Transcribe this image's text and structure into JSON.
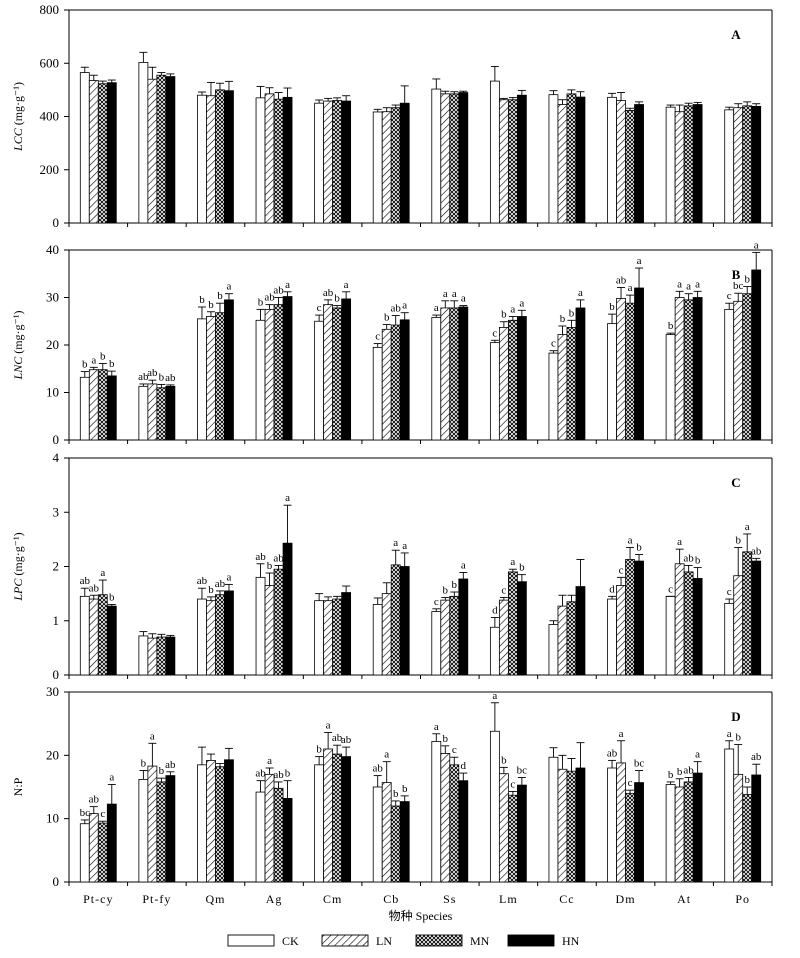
{
  "chart_data": [
    {
      "type": "bar",
      "panel_label": "A",
      "ylabel": "LCC",
      "yunit": "(mg·g⁻¹)",
      "ylim": [
        0,
        800
      ],
      "yticks": [
        "0",
        "200",
        "400",
        "600",
        "800"
      ],
      "categories": [
        "Pt-cy",
        "Pt-fy",
        "Qm",
        "Ag",
        "Cm",
        "Cb",
        "Ss",
        "Lm",
        "Cc",
        "Dm",
        "At",
        "Po"
      ],
      "series": [
        {
          "name": "CK",
          "values": [
            565,
            603,
            480,
            470,
            450,
            417,
            503,
            533,
            482,
            472,
            435,
            425
          ],
          "err": [
            20,
            38,
            12,
            43,
            12,
            10,
            38,
            55,
            15,
            15,
            8,
            10
          ],
          "labels": [
            "",
            "",
            "",
            "",
            "",
            "",
            "",
            "",
            "",
            "",
            "",
            ""
          ]
        },
        {
          "name": "LN",
          "values": [
            535,
            540,
            478,
            485,
            458,
            418,
            485,
            463,
            445,
            460,
            418,
            433
          ],
          "err": [
            20,
            45,
            50,
            23,
            10,
            15,
            10,
            5,
            18,
            30,
            25,
            15
          ],
          "labels": [
            "",
            "",
            "",
            "",
            "",
            "",
            "",
            "",
            "",
            "",
            "",
            ""
          ]
        },
        {
          "name": "MN",
          "values": [
            523,
            555,
            500,
            465,
            460,
            433,
            485,
            463,
            485,
            423,
            440,
            440
          ],
          "err": [
            10,
            10,
            25,
            25,
            10,
            10,
            8,
            8,
            15,
            8,
            10,
            15
          ],
          "labels": [
            "",
            "",
            "",
            "",
            "",
            "",
            "",
            "",
            "",
            "",
            "",
            ""
          ]
        },
        {
          "name": "HN",
          "values": [
            527,
            550,
            497,
            472,
            458,
            450,
            490,
            480,
            473,
            445,
            445,
            438
          ],
          "err": [
            10,
            10,
            35,
            35,
            20,
            65,
            5,
            18,
            20,
            10,
            8,
            10
          ],
          "labels": [
            "",
            "",
            "",
            "",
            "",
            "",
            "",
            "",
            "",
            "",
            "",
            ""
          ]
        }
      ]
    },
    {
      "type": "bar",
      "panel_label": "B",
      "ylabel": "LNC",
      "yunit": "(mg·g⁻¹)",
      "ylim": [
        0,
        40
      ],
      "yticks": [
        "0",
        "10",
        "20",
        "30",
        "40"
      ],
      "categories": [
        "Pt-cy",
        "Pt-fy",
        "Qm",
        "Ag",
        "Cm",
        "Cb",
        "Ss",
        "Lm",
        "Cc",
        "Dm",
        "At",
        "Po"
      ],
      "series": [
        {
          "name": "CK",
          "values": [
            13.2,
            11.3,
            25.5,
            25.2,
            25.0,
            19.5,
            25.8,
            20.5,
            18.3,
            24.5,
            22.2,
            27.5
          ],
          "err": [
            1.2,
            0.5,
            2.5,
            2.3,
            1.3,
            0.8,
            0.5,
            0.5,
            0.5,
            2.0,
            0.3,
            1.3
          ],
          "labels": [
            "b",
            "ab",
            "b",
            "b",
            "c",
            "c",
            "a",
            "c",
            "c",
            "b",
            "b",
            "c"
          ]
        },
        {
          "name": "LN",
          "values": [
            14.8,
            11.8,
            26.0,
            27.5,
            28.5,
            23.3,
            27.8,
            23.7,
            22.2,
            29.8,
            30.0,
            29.2
          ],
          "err": [
            0.5,
            0.8,
            1.0,
            1.0,
            1.0,
            1.0,
            1.5,
            1.2,
            1.8,
            2.3,
            1.3,
            1.7
          ],
          "labels": [
            "a",
            "ab",
            "b",
            "ab",
            "ab",
            "b",
            "a",
            "b",
            "b",
            "ab",
            "a",
            "bc"
          ]
        },
        {
          "name": "MN",
          "values": [
            14.8,
            11.0,
            26.8,
            28.5,
            27.8,
            24.2,
            27.8,
            25.2,
            23.7,
            28.8,
            29.5,
            30.8
          ],
          "err": [
            1.3,
            0.7,
            2.0,
            1.5,
            0.5,
            2.0,
            1.5,
            0.8,
            1.5,
            1.7,
            1.3,
            1.5
          ],
          "labels": [
            "b",
            "b",
            "b",
            "ab",
            "b",
            "ab",
            "a",
            "a",
            "b",
            "a",
            "a",
            "b"
          ]
        },
        {
          "name": "HN",
          "values": [
            13.5,
            11.3,
            29.5,
            30.2,
            29.7,
            25.3,
            28.0,
            26.0,
            27.8,
            32.0,
            30.0,
            35.8
          ],
          "err": [
            1.0,
            0.3,
            1.3,
            1.0,
            1.5,
            1.5,
            0.3,
            1.3,
            1.7,
            4.2,
            1.3,
            3.7
          ],
          "labels": [
            "b",
            "ab",
            "a",
            "a",
            "a",
            "a",
            "a",
            "a",
            "a",
            "a",
            "a",
            "a"
          ]
        }
      ]
    },
    {
      "type": "bar",
      "panel_label": "C",
      "ylabel": "LPC",
      "yunit": "(mg·g⁻¹)",
      "ylim": [
        0,
        4
      ],
      "yticks": [
        "0",
        "1",
        "2",
        "3",
        "4"
      ],
      "categories": [
        "Pt-cy",
        "Pt-fy",
        "Qm",
        "Ag",
        "Cm",
        "Cb",
        "Ss",
        "Lm",
        "Cc",
        "Dm",
        "At",
        "Po"
      ],
      "series": [
        {
          "name": "CK",
          "values": [
            1.45,
            0.72,
            1.4,
            1.8,
            1.37,
            1.3,
            1.17,
            0.88,
            0.93,
            1.4,
            1.45,
            1.32
          ],
          "err": [
            0.15,
            0.08,
            0.2,
            0.25,
            0.13,
            0.12,
            0.05,
            0.18,
            0.07,
            0.05,
            0.0,
            0.08
          ],
          "labels": [
            "ab",
            "",
            "ab",
            "ab",
            "",
            "",
            "c",
            "d",
            "",
            "d",
            "c",
            "c"
          ]
        },
        {
          "name": "LN",
          "values": [
            1.4,
            0.68,
            1.37,
            1.65,
            1.37,
            1.5,
            1.38,
            1.38,
            1.27,
            1.65,
            2.05,
            1.83
          ],
          "err": [
            0.07,
            0.08,
            0.07,
            0.23,
            0.07,
            0.2,
            0.05,
            0.05,
            0.2,
            0.15,
            0.27,
            0.52
          ],
          "labels": [
            "ab",
            "",
            "b",
            "b",
            "",
            "",
            "b",
            "c",
            "",
            "c",
            "a",
            "b"
          ]
        },
        {
          "name": "MN",
          "values": [
            1.48,
            0.7,
            1.48,
            1.95,
            1.4,
            2.03,
            1.45,
            1.9,
            1.35,
            2.13,
            1.9,
            2.27
          ],
          "err": [
            0.27,
            0.05,
            0.07,
            0.07,
            0.05,
            0.27,
            0.08,
            0.05,
            0.12,
            0.22,
            0.12,
            0.33
          ],
          "labels": [
            "a",
            "",
            "ab",
            "ab",
            "",
            "a",
            "b",
            "a",
            "",
            "a",
            "ab",
            "a"
          ]
        },
        {
          "name": "HN",
          "values": [
            1.27,
            0.7,
            1.55,
            2.43,
            1.52,
            2.0,
            1.77,
            1.72,
            1.63,
            2.1,
            1.78,
            2.1
          ],
          "err": [
            0.03,
            0.03,
            0.12,
            0.7,
            0.12,
            0.25,
            0.12,
            0.13,
            0.5,
            0.12,
            0.2,
            0.05
          ],
          "labels": [
            "b",
            "",
            "a",
            "a",
            "",
            "a",
            "a",
            "b",
            "",
            "b",
            "b",
            "ab"
          ]
        }
      ]
    },
    {
      "type": "bar",
      "panel_label": "D",
      "ylabel": "N:P",
      "ylim": [
        0,
        30
      ],
      "yticks": [
        "0",
        "10",
        "20",
        "30"
      ],
      "xlabel": "物种 Species",
      "categories": [
        "Pt-cy",
        "Pt-fy",
        "Qm",
        "Ag",
        "Cm",
        "Cb",
        "Ss",
        "Lm",
        "Cc",
        "Dm",
        "At",
        "Po"
      ],
      "series": [
        {
          "name": "CK",
          "values": [
            9.2,
            16.2,
            18.5,
            14.2,
            18.5,
            15.0,
            22.2,
            23.8,
            19.7,
            18.0,
            15.4,
            21.0
          ],
          "err": [
            0.6,
            1.4,
            2.8,
            1.8,
            1.3,
            1.8,
            1.2,
            4.5,
            1.5,
            1.2,
            0.4,
            1.3
          ],
          "labels": [
            "bc",
            "b",
            "",
            "ab",
            "b",
            "ab",
            "a",
            "a",
            "",
            "ab",
            "b",
            "a"
          ]
        },
        {
          "name": "LN",
          "values": [
            10.8,
            18.3,
            19.2,
            17.0,
            21.0,
            15.7,
            20.3,
            17.1,
            17.8,
            18.8,
            15.0,
            17.0
          ],
          "err": [
            1.1,
            3.6,
            1.0,
            1.0,
            2.6,
            3.3,
            1.2,
            1.0,
            2.2,
            3.5,
            1.3,
            4.7
          ],
          "labels": [
            "ab",
            "a",
            "",
            "a",
            "a",
            "a",
            "b",
            "b",
            "",
            "a",
            "b",
            "b"
          ]
        },
        {
          "name": "MN",
          "values": [
            9.3,
            15.8,
            18.2,
            14.8,
            20.2,
            12.0,
            18.5,
            13.7,
            17.5,
            14.0,
            15.8,
            13.8
          ],
          "err": [
            0.3,
            0.6,
            0.5,
            1.0,
            1.4,
            0.8,
            1.2,
            0.6,
            2.0,
            0.5,
            0.7,
            1.2
          ],
          "labels": [
            "c",
            "b",
            "",
            "ab",
            "ab",
            "b",
            "c",
            "c",
            "",
            "c",
            "ab",
            "b"
          ]
        },
        {
          "name": "HN",
          "values": [
            12.3,
            16.8,
            19.3,
            13.2,
            19.8,
            12.7,
            16.0,
            15.3,
            18.0,
            15.7,
            17.2,
            16.9
          ],
          "err": [
            3.1,
            0.6,
            1.8,
            2.8,
            1.5,
            0.9,
            1.2,
            1.2,
            4.0,
            1.9,
            1.8,
            1.7
          ],
          "labels": [
            "a",
            "ab",
            "",
            "b",
            "ab",
            "b",
            "d",
            "bc",
            "",
            "bc",
            "a",
            "ab"
          ]
        }
      ]
    }
  ],
  "legend": [
    {
      "name": "CK",
      "pattern": "white"
    },
    {
      "name": "LN",
      "pattern": "hatch"
    },
    {
      "name": "MN",
      "pattern": "crosshatch"
    },
    {
      "name": "HN",
      "pattern": "black"
    }
  ]
}
